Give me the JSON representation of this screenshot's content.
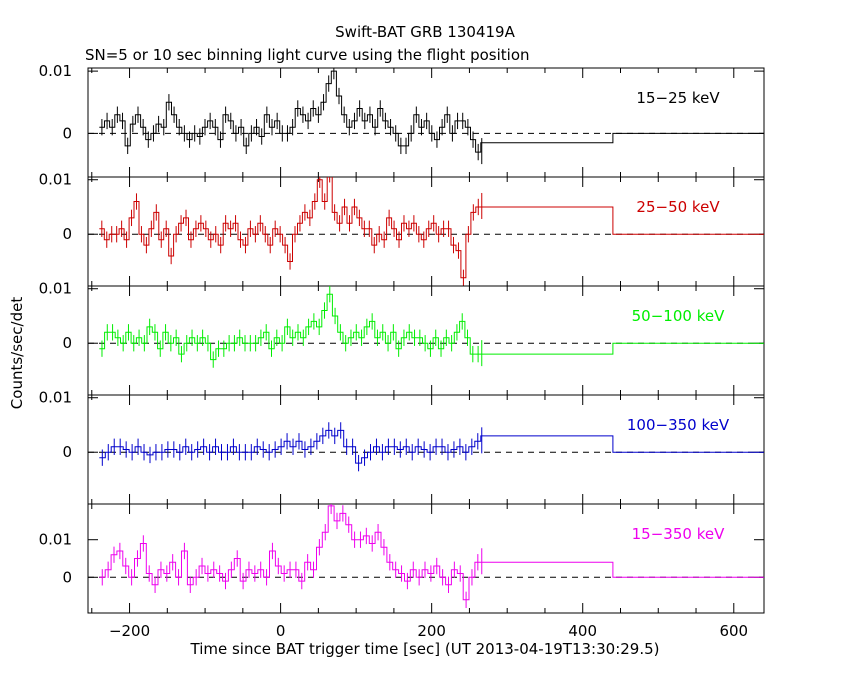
{
  "chart_data": {
    "type": "line",
    "title": "Swift-BAT GRB 130419A",
    "subtitle": "SN=5 or 10 sec binning light curve using the flight position",
    "xlabel": "Time since BAT trigger time [sec] (UT 2013-04-19T13:30:29.5)",
    "ylabel": "Counts/sec/det",
    "xlim": [
      -255,
      640
    ],
    "x_ticks": [
      -200,
      0,
      200,
      400,
      600
    ],
    "x_tick_labels": [
      "−200",
      "0",
      "200",
      "400",
      "600"
    ],
    "y_tick_labels": [
      "0.01",
      "0"
    ],
    "grid": false,
    "panels": [
      {
        "band": "15−25 keV",
        "color": "#000000",
        "ylim": [
          -0.007,
          0.0105
        ],
        "y_ticks": [
          0,
          0.01
        ],
        "values": [
          0.001,
          0.002,
          0.001,
          0.003,
          0.002,
          -0.002,
          0.0015,
          0.003,
          0.001,
          -0.001,
          0.0,
          0.0015,
          0.001,
          0.005,
          0.003,
          0.001,
          0.0,
          -0.001,
          0.0,
          -0.0005,
          0.001,
          0.002,
          0.001,
          -0.001,
          0.003,
          0.002,
          0.0,
          0.001,
          -0.002,
          0.0,
          0.001,
          -0.0005,
          0.003,
          0.001,
          0.002,
          0.0,
          0.0,
          0.001,
          0.004,
          0.003,
          0.002,
          0.004,
          0.003,
          0.005,
          0.008,
          0.01,
          0.006,
          0.003,
          0.001,
          0.002,
          0.004,
          0.002,
          0.003,
          0.001,
          0.004,
          0.002,
          0.001,
          0.0,
          -0.002,
          -0.002,
          0.0,
          0.003,
          0.001,
          0.002,
          0.0,
          -0.001,
          0.001,
          0.003,
          0.0,
          0.002,
          0.002,
          0.001,
          -0.001,
          -0.003
        ],
        "late": [
          -0.0015,
          0.0
        ]
      },
      {
        "band": "25−50 keV",
        "color": "#cc0000",
        "ylim": [
          -0.0095,
          0.0105
        ],
        "y_ticks": [
          0,
          0.01
        ],
        "values": [
          0.001,
          -0.001,
          0.0,
          0.0,
          0.001,
          -0.001,
          0.003,
          0.006,
          0.0,
          -0.002,
          0.001,
          0.004,
          -0.001,
          0.001,
          -0.004,
          0.0,
          0.002,
          0.003,
          -0.001,
          0.001,
          0.002,
          0.001,
          -0.001,
          0.0,
          -0.002,
          0.002,
          0.001,
          0.002,
          -0.001,
          -0.002,
          0.001,
          0.0,
          0.002,
          0.0,
          -0.002,
          0.001,
          0.0,
          -0.002,
          -0.005,
          0.0,
          0.002,
          0.004,
          0.003,
          0.006,
          0.01,
          0.006,
          0.011,
          0.004,
          0.002,
          0.005,
          0.002,
          0.005,
          0.003,
          0.001,
          0.001,
          -0.002,
          0.0,
          -0.001,
          0.003,
          0.001,
          -0.001,
          0.002,
          0.001,
          0.002,
          0.0,
          -0.001,
          0.001,
          0.002,
          0.0,
          0.001,
          0.001,
          -0.002,
          -0.003,
          -0.008,
          0.0,
          0.004,
          0.005
        ],
        "late": [
          0.005,
          0.0
        ]
      },
      {
        "band": "50−100 keV",
        "color": "#00ee00",
        "ylim": [
          -0.0095,
          0.0105
        ],
        "y_ticks": [
          0,
          0.01
        ],
        "values": [
          -0.001,
          0.002,
          0.002,
          0.001,
          0.0,
          0.002,
          0.0,
          0.001,
          0.0,
          0.003,
          0.002,
          -0.001,
          0.002,
          0.0,
          0.001,
          -0.002,
          0.0,
          0.001,
          0.0,
          0.001,
          0.0,
          -0.003,
          -0.001,
          -0.001,
          0.0,
          0.0,
          0.001,
          0.0,
          0.0,
          0.0,
          0.001,
          0.002,
          -0.001,
          0.001,
          0.0,
          0.003,
          0.001,
          0.002,
          0.001,
          0.003,
          0.004,
          0.003,
          0.006,
          0.009,
          0.005,
          0.002,
          0.0,
          0.001,
          0.002,
          0.001,
          0.003,
          0.004,
          0.001,
          0.002,
          0.0,
          0.002,
          -0.001,
          0.001,
          0.002,
          0.001,
          0.001,
          0.0,
          -0.001,
          0.001,
          -0.001,
          0.001,
          0.0,
          0.002,
          0.004,
          0.001,
          -0.002,
          -0.002
        ],
        "late": [
          -0.002,
          0.0
        ]
      },
      {
        "band": "100−350 keV",
        "color": "#0000cc",
        "ylim": [
          -0.0095,
          0.0105
        ],
        "y_ticks": [
          0,
          0.01
        ],
        "values": [
          -0.001,
          0.0,
          0.001,
          0.001,
          0.0005,
          0.0,
          0.001,
          0.0,
          -0.0005,
          0.0,
          0.0,
          0.0005,
          0.0005,
          0.0,
          0.001,
          0.0,
          0.0005,
          0.001,
          0.0,
          0.001,
          0.0,
          0.0,
          0.001,
          0.0,
          0.0,
          0.0,
          0.001,
          0.0005,
          0.0,
          0.0005,
          0.001,
          0.002,
          0.001,
          0.002,
          0.0005,
          0.001,
          0.002,
          0.003,
          0.004,
          0.003,
          0.004,
          0.001,
          0.001,
          -0.002,
          -0.001,
          0.0,
          0.001,
          0.0,
          0.001,
          0.001,
          0.0005,
          0.001,
          0.0,
          0.001,
          0.0005,
          0.0,
          0.001,
          0.001,
          0.0,
          0.0005,
          0.001,
          0.0,
          0.001,
          0.002
        ],
        "late": [
          0.003,
          0.0
        ]
      },
      {
        "band": "15−350 keV",
        "color": "#ee00ee",
        "ylim": [
          -0.0095,
          0.0195
        ],
        "y_ticks": [
          0,
          0.01
        ],
        "values": [
          0.0,
          0.002,
          0.006,
          0.007,
          0.003,
          0.0,
          0.005,
          0.009,
          0.001,
          -0.002,
          0.002,
          0.001,
          0.004,
          0.0,
          0.007,
          -0.002,
          0.0,
          0.003,
          0.001,
          0.002,
          0.001,
          -0.001,
          0.002,
          0.005,
          -0.001,
          0.002,
          0.001,
          0.002,
          0.0,
          0.007,
          0.003,
          0.001,
          0.002,
          0.002,
          -0.001,
          0.004,
          0.002,
          0.008,
          0.012,
          0.019,
          0.015,
          0.017,
          0.014,
          0.01,
          0.01,
          0.011,
          0.009,
          0.012,
          0.008,
          0.004,
          0.002,
          0.001,
          -0.001,
          0.002,
          0.0,
          0.002,
          0.001,
          0.003,
          0.0,
          -0.002,
          0.002,
          0.001,
          -0.006,
          0.0,
          0.004
        ],
        "late": [
          0.004,
          0.0
        ]
      }
    ],
    "late_bins": [
      [
        265,
        440
      ],
      [
        440,
        760
      ]
    ]
  }
}
